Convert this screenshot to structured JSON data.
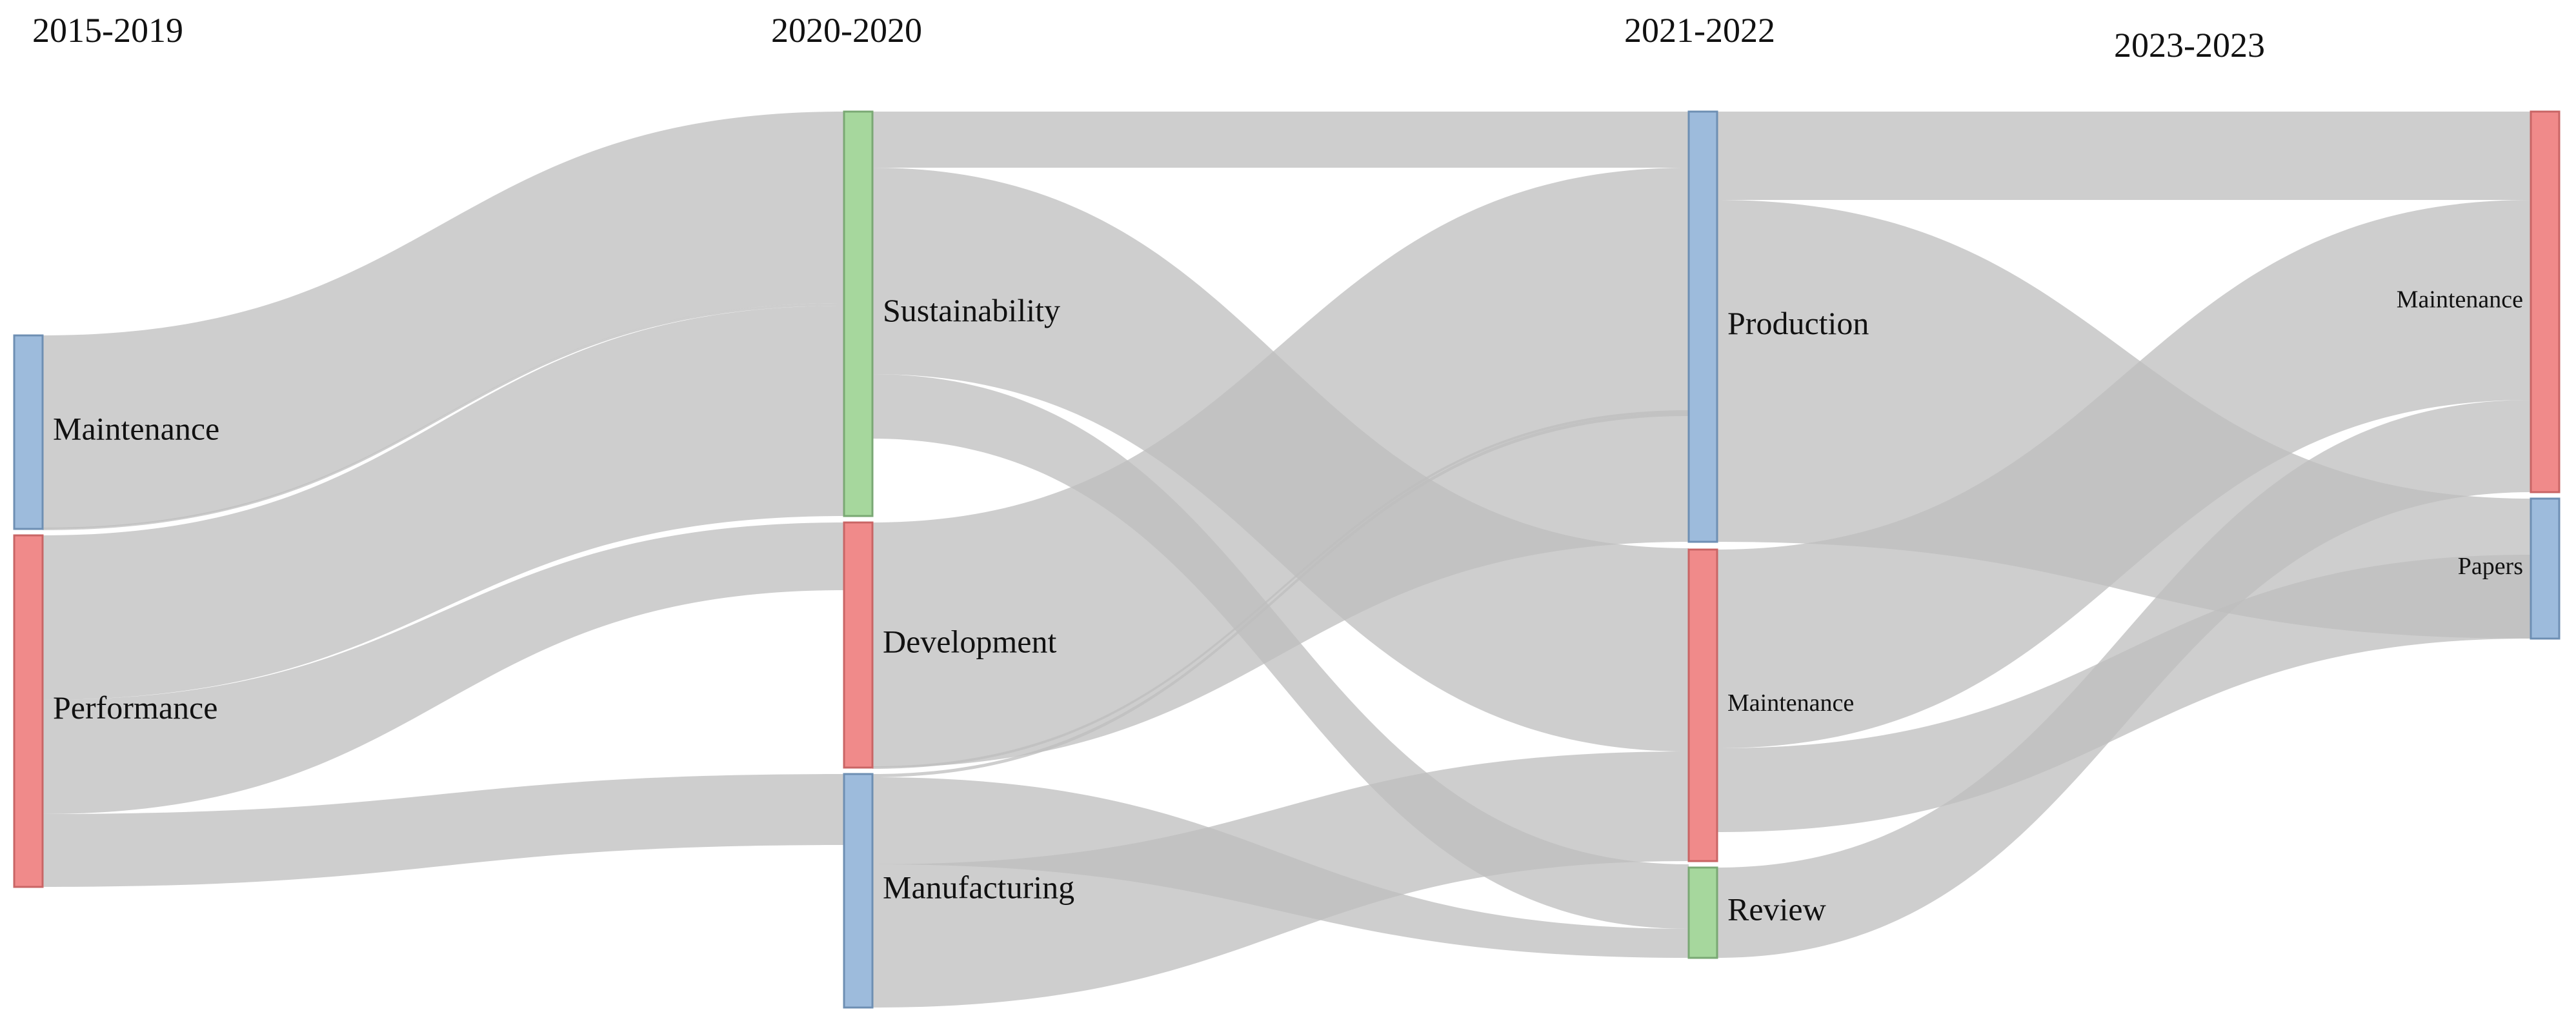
{
  "chart_data": {
    "type": "sankey",
    "periods": [
      "2015-2019",
      "2020-2020",
      "2021-2022",
      "2023-2023"
    ],
    "colors": {
      "blue": "#9dbbdc",
      "red": "#f08a8a",
      "green": "#a6d79d",
      "flow": "#bdbdbd",
      "blue_border": "#6e8fb3",
      "red_border": "#c96565",
      "green_border": "#7aa874"
    },
    "nodes": [
      {
        "id": "m19",
        "label": "Maintenance",
        "column": 0,
        "color": "blue"
      },
      {
        "id": "p19",
        "label": "Performance",
        "column": 0,
        "color": "red"
      },
      {
        "id": "s20",
        "label": "Sustainability",
        "column": 1,
        "color": "green"
      },
      {
        "id": "d20",
        "label": "Development",
        "column": 1,
        "color": "red"
      },
      {
        "id": "mf20",
        "label": "Manufacturing",
        "column": 1,
        "color": "blue"
      },
      {
        "id": "pr22",
        "label": "Production",
        "column": 2,
        "color": "blue"
      },
      {
        "id": "m22",
        "label": "Maintenance",
        "column": 2,
        "color": "red",
        "small": true
      },
      {
        "id": "r22",
        "label": "Review",
        "column": 2,
        "color": "green"
      },
      {
        "id": "m23",
        "label": "Maintenance",
        "column": 3,
        "color": "red",
        "small": true
      },
      {
        "id": "pa23",
        "label": "Papers",
        "column": 3,
        "color": "blue",
        "small": true
      }
    ],
    "links": [
      {
        "source": "m19",
        "target": "s20",
        "value": 9
      },
      {
        "source": "m19",
        "target": "s20",
        "value": 0.2
      },
      {
        "source": "p19",
        "target": "s20",
        "value": 10
      },
      {
        "source": "p19",
        "target": "d20",
        "value": 3
      },
      {
        "source": "p19",
        "target": "mf20",
        "value": 3.3
      },
      {
        "source": "s20",
        "target": "pr22",
        "value": 2.5
      },
      {
        "source": "s20",
        "target": "m22",
        "value": 9.5
      },
      {
        "source": "s20",
        "target": "r22",
        "value": 3
      },
      {
        "source": "d20",
        "target": "pr22",
        "value": 11
      },
      {
        "source": "d20",
        "target": "pr22",
        "value": 0.3
      },
      {
        "source": "mf20",
        "target": "pr22",
        "value": 0.2
      },
      {
        "source": "mf20",
        "target": "m22",
        "value": 5
      },
      {
        "source": "mf20",
        "target": "r22",
        "value": 5.5
      },
      {
        "source": "pr22",
        "target": "m23",
        "value": 4
      },
      {
        "source": "pr22",
        "target": "pa23",
        "value": 15
      },
      {
        "source": "m22",
        "target": "m23",
        "value": 9
      },
      {
        "source": "m22",
        "target": "pa23",
        "value": 5
      },
      {
        "source": "r22",
        "target": "m23",
        "value": 4
      }
    ]
  }
}
